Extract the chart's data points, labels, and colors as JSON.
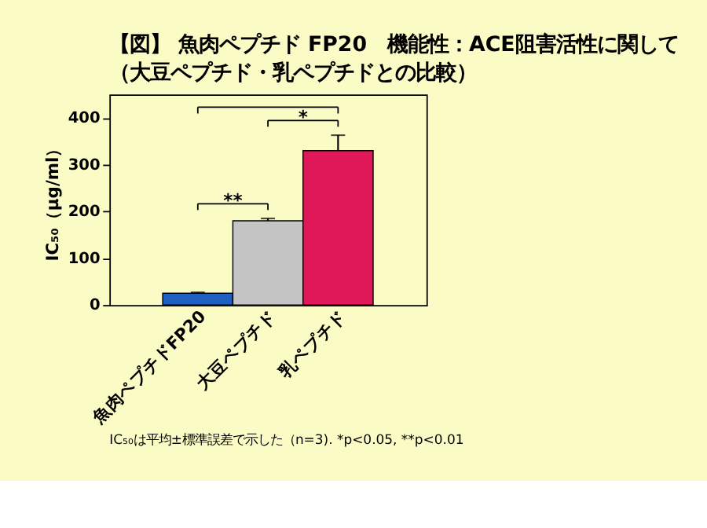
{
  "chart_data": {
    "type": "bar",
    "title": [
      "【図】 魚肉ペプチド FP20　機能性：ACE阻害活性に関して",
      "（大豆ペプチド・乳ペプチドとの比較）"
    ],
    "ylabel": "IC₅₀（μg/ml）",
    "categories": [
      "魚肉ペプチドFP20",
      "大豆ペプチド",
      "乳ペプチド"
    ],
    "values": [
      25,
      180,
      330
    ],
    "colors": [
      "#1f5fbf",
      "#c4c4c4",
      "#e0185a"
    ],
    "errors": [
      [
        25,
        27
      ],
      [
        180,
        185
      ],
      [
        330,
        363
      ]
    ],
    "ylim": [
      0,
      450
    ],
    "yticks": [
      0,
      100,
      200,
      300,
      400
    ],
    "grid": false,
    "annotations": [
      "**",
      "*",
      "IC₅₀は平均±標準誤差で示した（n=3). *p<0.05, **p<0.01"
    ]
  }
}
